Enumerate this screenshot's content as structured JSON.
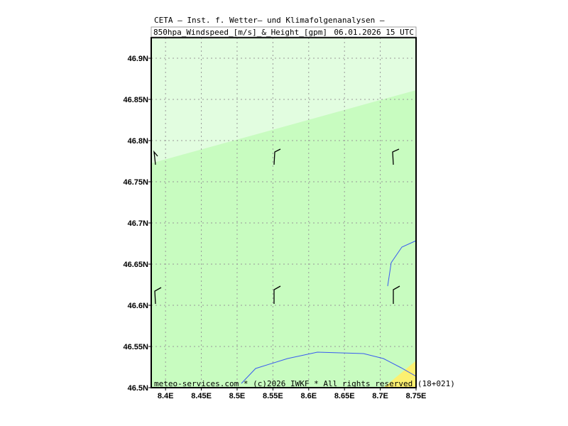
{
  "header": {
    "line1": "CETA — Inst. f. Wetter— und Klimafolgenanalysen —",
    "line2": "850hpa_Windspeed_[m/s]_&_Height_[gpm]",
    "date": "06.01.2026 15 UTC"
  },
  "map": {
    "xlim": [
      8.38,
      8.75
    ],
    "ylim": [
      46.5,
      46.925
    ],
    "xticks": [
      {
        "value": 8.4,
        "label": "8.4E"
      },
      {
        "value": 8.45,
        "label": "8.45E"
      },
      {
        "value": 8.5,
        "label": "8.5E"
      },
      {
        "value": 8.55,
        "label": "8.55E"
      },
      {
        "value": 8.6,
        "label": "8.6E"
      },
      {
        "value": 8.65,
        "label": "8.65E"
      },
      {
        "value": 8.7,
        "label": "8.7E"
      },
      {
        "value": 8.75,
        "label": "8.75E"
      }
    ],
    "yticks": [
      {
        "value": 46.5,
        "label": "46.5N"
      },
      {
        "value": 46.55,
        "label": "46.55N"
      },
      {
        "value": 46.6,
        "label": "46.6N"
      },
      {
        "value": 46.65,
        "label": "46.65N"
      },
      {
        "value": 46.7,
        "label": "46.7N"
      },
      {
        "value": 46.75,
        "label": "46.75N"
      },
      {
        "value": 46.8,
        "label": "46.8N"
      },
      {
        "value": 46.85,
        "label": "46.85N"
      },
      {
        "value": 46.9,
        "label": "46.9N"
      }
    ]
  },
  "footer": "meteo-services.com * (c)2026 IWKF * All rights reserved (18+021)"
}
